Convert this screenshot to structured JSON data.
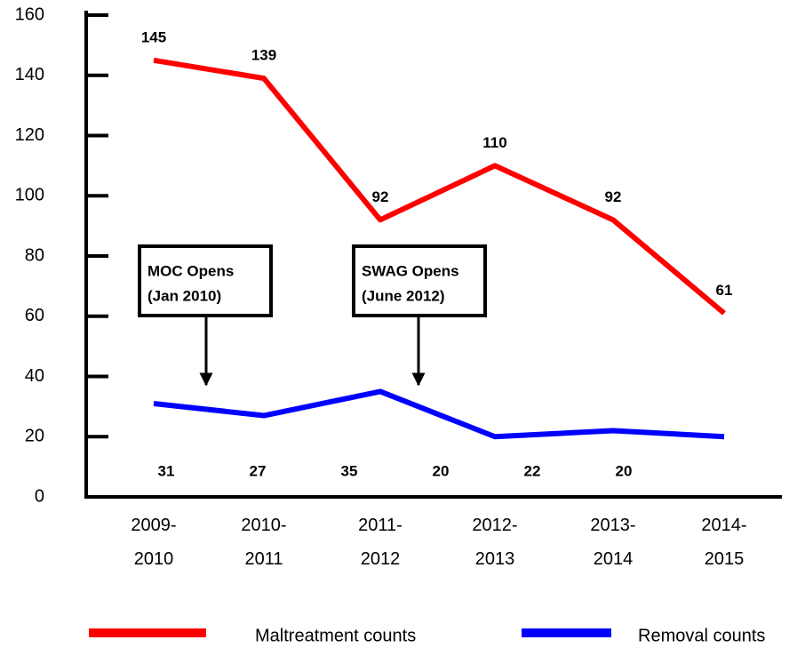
{
  "chart_data": {
    "type": "line",
    "categories": [
      "2009-2010",
      "2010-2011",
      "2011-2012",
      "2012-2013",
      "2013-2014",
      "2014-2015"
    ],
    "series": [
      {
        "name": "Maltreatment counts",
        "color": "#ff0000",
        "values": [
          145,
          139,
          92,
          110,
          92,
          61
        ]
      },
      {
        "name": "Removal counts",
        "color": "#0000ff",
        "values": [
          31,
          27,
          35,
          20,
          22,
          20
        ]
      }
    ],
    "ylim": [
      0,
      160
    ],
    "yticks": [
      0,
      20,
      40,
      60,
      80,
      100,
      120,
      140,
      160
    ],
    "annotations": [
      {
        "lines": [
          "MOC Opens",
          "(Jan 2010)"
        ]
      },
      {
        "lines": [
          "SWAG Opens",
          "(June 2012)"
        ]
      }
    ],
    "legend": "bottom"
  }
}
